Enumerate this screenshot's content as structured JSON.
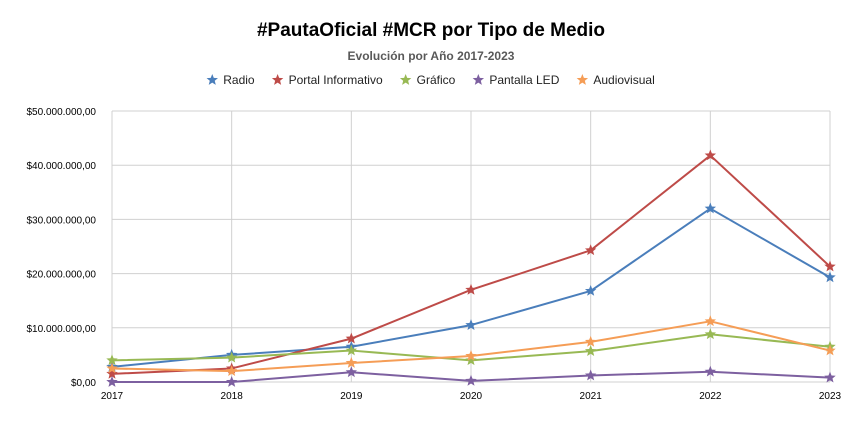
{
  "chart_data": {
    "type": "line",
    "title": "#PautaOficial #MCR por Tipo de Medio",
    "subtitle": "Evolución por Año 2017-2023",
    "xlabel": "",
    "ylabel": "",
    "categories": [
      "2017",
      "2018",
      "2019",
      "2020",
      "2021",
      "2022",
      "2023"
    ],
    "ylim": [
      0,
      50000000
    ],
    "yticks": [
      0,
      10000000,
      20000000,
      30000000,
      40000000,
      50000000
    ],
    "ytick_labels": [
      "$0,00",
      "$10.000.000,00",
      "$20.000.000,00",
      "$30.000.000,00",
      "$40.000.000,00",
      "$50.000.000,00"
    ],
    "grid": true,
    "legend_position": "top",
    "marker": "star",
    "series": [
      {
        "name": "Radio",
        "color": "#4a7ebb",
        "values": [
          2800000,
          5000000,
          6500000,
          10500000,
          16800000,
          32000000,
          19300000
        ]
      },
      {
        "name": "Portal Informativo",
        "color": "#be4b48",
        "values": [
          1500000,
          2500000,
          8000000,
          17000000,
          24300000,
          41800000,
          21300000
        ]
      },
      {
        "name": "Gráfico",
        "color": "#98b954",
        "values": [
          4000000,
          4500000,
          5800000,
          4000000,
          5700000,
          8800000,
          6500000
        ]
      },
      {
        "name": "Pantalla LED",
        "color": "#7d60a0",
        "values": [
          0,
          0,
          1800000,
          200000,
          1200000,
          1900000,
          800000
        ]
      },
      {
        "name": "Audiovisual",
        "color": "#f59d56",
        "values": [
          2500000,
          2000000,
          3500000,
          4800000,
          7400000,
          11200000,
          5800000
        ]
      }
    ]
  }
}
